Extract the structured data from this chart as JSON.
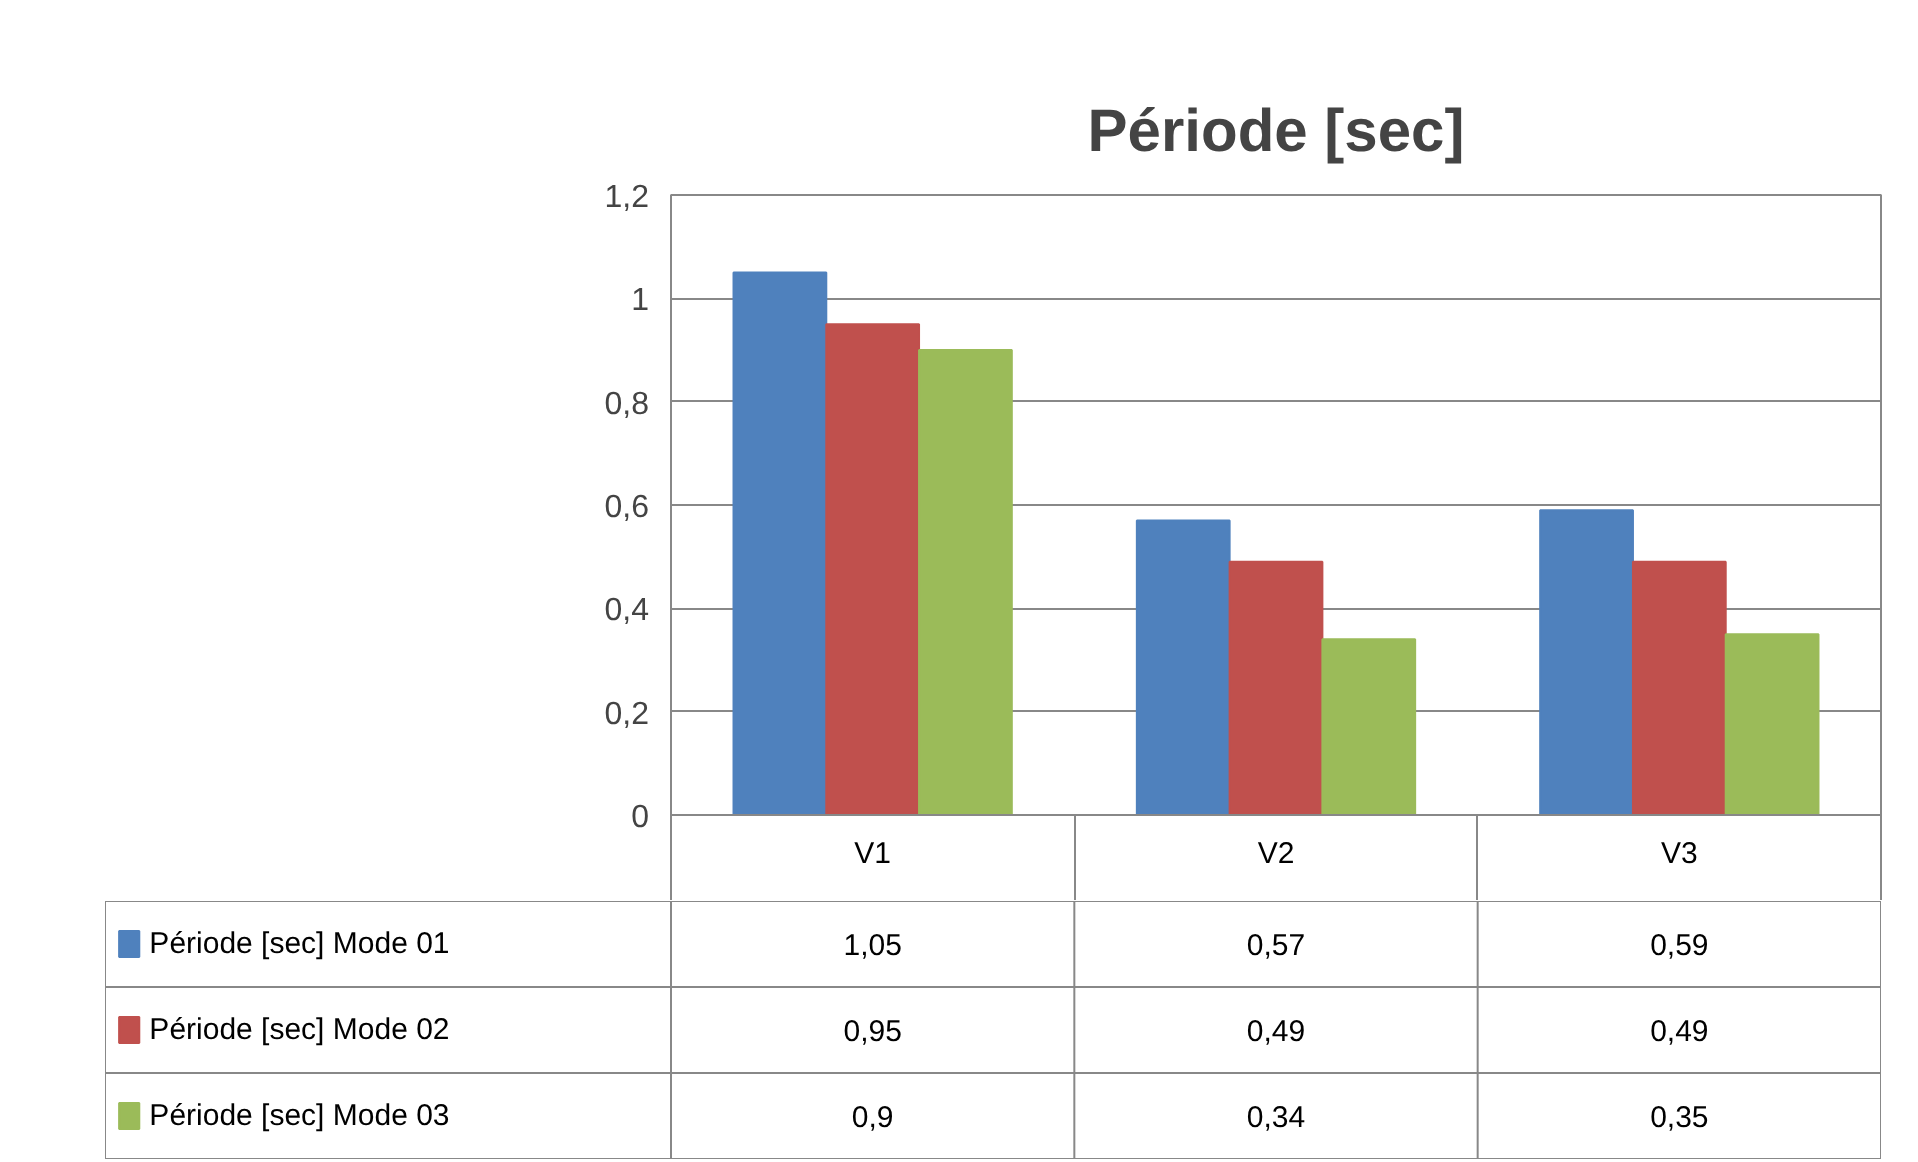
{
  "chart_data": {
    "type": "bar",
    "title": "Période [sec]",
    "categories": [
      "V1",
      "V2",
      "V3"
    ],
    "series": [
      {
        "name": "Période [sec] Mode 01",
        "color": "#4f81bd",
        "values": [
          1.05,
          0.57,
          0.59
        ],
        "value_labels": [
          "1,05",
          "0,57",
          "0,59"
        ]
      },
      {
        "name": "Période [sec] Mode 02",
        "color": "#c0504d",
        "values": [
          0.95,
          0.49,
          0.49
        ],
        "value_labels": [
          "0,95",
          "0,49",
          "0,49"
        ]
      },
      {
        "name": "Période [sec] Mode 03",
        "color": "#9bbb59",
        "values": [
          0.9,
          0.34,
          0.35
        ],
        "value_labels": [
          "0,9",
          "0,34",
          "0,35"
        ]
      }
    ],
    "ylim": [
      0,
      1.2
    ],
    "yticks": [
      0,
      {
        "value": 0.2,
        "label": "0,2"
      },
      {
        "value": 0.4,
        "label": "0,4"
      },
      {
        "value": 0.6,
        "label": "0,6"
      },
      {
        "value": 0.8,
        "label": "0,8"
      },
      1,
      {
        "value": 1.2,
        "label": "1,2"
      }
    ],
    "grid": "y",
    "legend": "bottom"
  }
}
